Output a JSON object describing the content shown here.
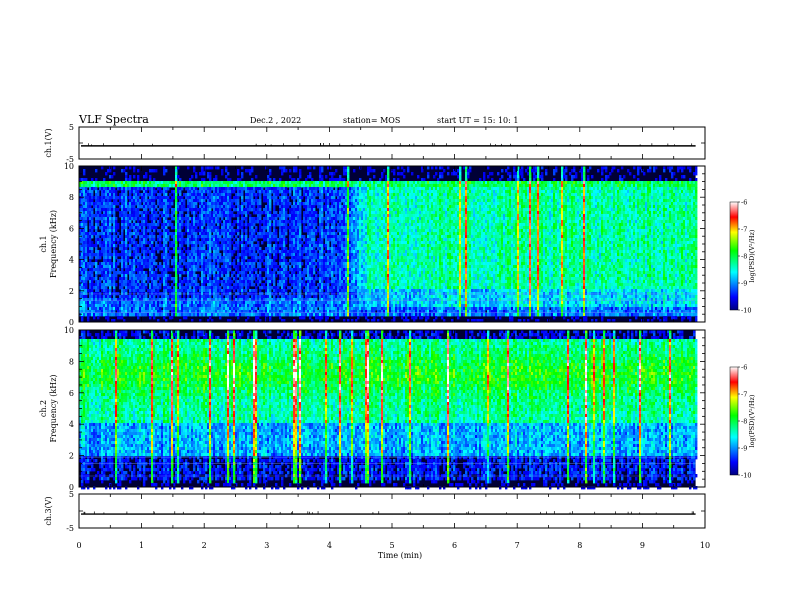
{
  "header": {
    "title": "VLF Spectra",
    "date": "Dec.2 , 2022",
    "station": "station= MOS",
    "start": "start  UT =   15: 10: 1"
  },
  "chart_data": [
    {
      "type": "line",
      "name": "ch1-waveform",
      "ylabel": "ch.1(V)",
      "ylim": [
        -5,
        5
      ],
      "yticks": [
        "5",
        "-5"
      ],
      "xlim": [
        0,
        10
      ],
      "level": -0.9
    },
    {
      "type": "heatmap",
      "name": "ch1-spectrogram",
      "ylabel": "ch.1\nFrequency  (kHz)",
      "ylabel_lines": [
        "ch.1",
        "Frequency  (kHz)"
      ],
      "ylim": [
        0,
        10
      ],
      "yticks": [
        "0",
        "2",
        "4",
        "6",
        "8",
        "10"
      ],
      "xlim": [
        0,
        10
      ],
      "data_end_min": 9.85,
      "colorbar": {
        "label": "log(PSD)(V²/Hz)",
        "range": [
          -10,
          -6
        ],
        "ticks": [
          "-6",
          "-7",
          "-8",
          "-9",
          "-10"
        ]
      }
    },
    {
      "type": "heatmap",
      "name": "ch2-spectrogram",
      "ylabel": "ch.2\nFrequency  (kHz)",
      "ylabel_lines": [
        "ch.2",
        "Frequency  (kHz)"
      ],
      "ylim": [
        0,
        10
      ],
      "yticks": [
        "0",
        "2",
        "4",
        "6",
        "8",
        "10"
      ],
      "xlim": [
        0,
        10
      ],
      "data_end_min": 9.85,
      "colorbar": {
        "label": "log(PSD)(V²/Hz)",
        "range": [
          -10,
          -6
        ],
        "ticks": [
          "-6",
          "-7",
          "-8",
          "-9",
          "-10"
        ]
      }
    },
    {
      "type": "line",
      "name": "ch3-waveform",
      "ylabel": "ch.3(V)",
      "ylim": [
        -5,
        5
      ],
      "yticks": [
        "5",
        "-5"
      ],
      "xlim": [
        0,
        10
      ],
      "level": -0.9
    }
  ],
  "xaxis": {
    "label": "Time  (min)",
    "range": [
      0,
      10
    ],
    "ticks": [
      "0",
      "1",
      "2",
      "3",
      "4",
      "5",
      "6",
      "7",
      "8",
      "9",
      "10"
    ]
  },
  "colors": {
    "background": "#ffffff",
    "axes": "#000000",
    "noise": "#000000"
  }
}
